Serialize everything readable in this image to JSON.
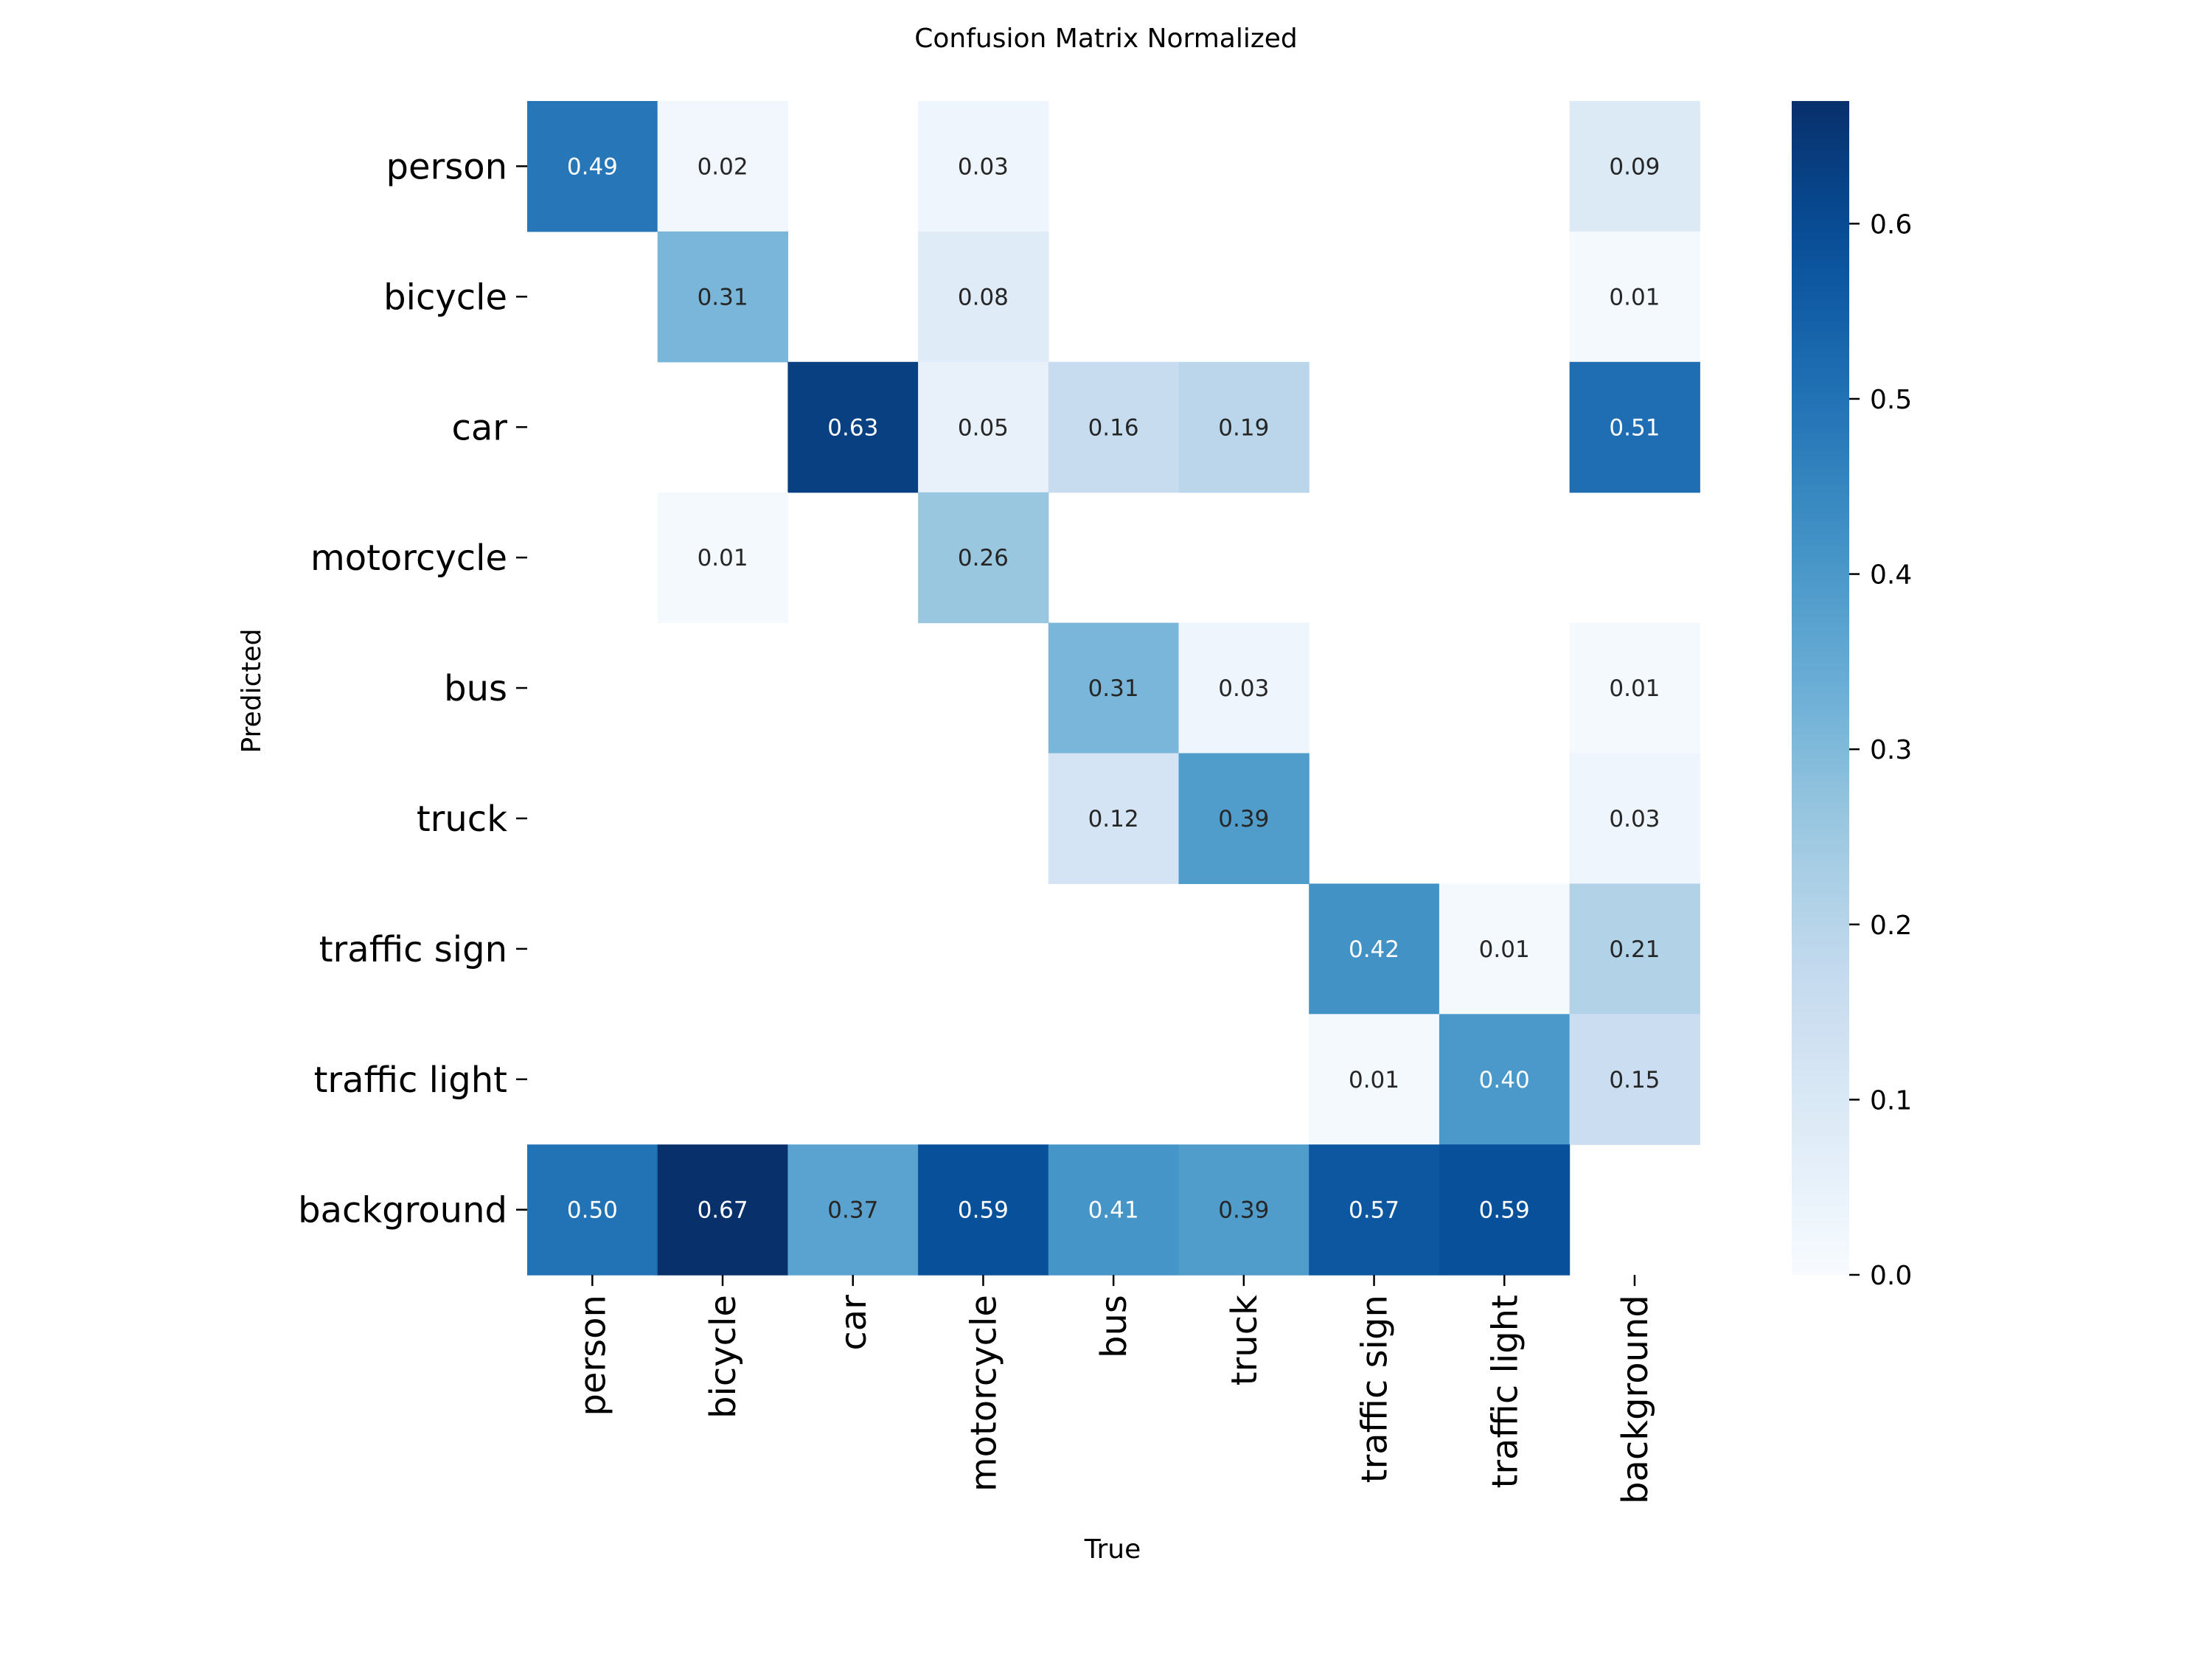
{
  "chart_data": {
    "type": "heatmap",
    "title": "Confusion Matrix Normalized",
    "xlabel": "True",
    "ylabel": "Predicted",
    "categories": [
      "person",
      "bicycle",
      "car",
      "motorcycle",
      "bus",
      "truck",
      "traffic sign",
      "traffic light",
      "background"
    ],
    "rows": [
      "person",
      "bicycle",
      "car",
      "motorcycle",
      "bus",
      "truck",
      "traffic sign",
      "traffic light",
      "background"
    ],
    "values": [
      [
        0.49,
        0.02,
        null,
        0.03,
        null,
        null,
        null,
        null,
        0.09
      ],
      [
        null,
        0.31,
        null,
        0.08,
        null,
        null,
        null,
        null,
        0.01
      ],
      [
        null,
        null,
        0.63,
        0.05,
        0.16,
        0.19,
        null,
        null,
        0.51
      ],
      [
        null,
        0.01,
        null,
        0.26,
        null,
        null,
        null,
        null,
        null
      ],
      [
        null,
        null,
        null,
        null,
        0.31,
        0.03,
        null,
        null,
        0.01
      ],
      [
        null,
        null,
        null,
        null,
        0.12,
        0.39,
        null,
        null,
        0.03
      ],
      [
        null,
        null,
        null,
        null,
        null,
        null,
        0.42,
        0.01,
        0.21
      ],
      [
        null,
        null,
        null,
        null,
        null,
        null,
        0.01,
        0.4,
        0.15
      ],
      [
        0.5,
        0.67,
        0.37,
        0.59,
        0.41,
        0.39,
        0.57,
        0.59,
        null
      ]
    ],
    "value_labels": [
      [
        "0.49",
        "0.02",
        "",
        "0.03",
        "",
        "",
        "",
        "",
        "0.09"
      ],
      [
        "",
        "0.31",
        "",
        "0.08",
        "",
        "",
        "",
        "",
        "0.01"
      ],
      [
        "",
        "",
        "0.63",
        "0.05",
        "0.16",
        "0.19",
        "",
        "",
        "0.51"
      ],
      [
        "",
        "0.01",
        "",
        "0.26",
        "",
        "",
        "",
        "",
        ""
      ],
      [
        "",
        "",
        "",
        "",
        "0.31",
        "0.03",
        "",
        "",
        "0.01"
      ],
      [
        "",
        "",
        "",
        "",
        "0.12",
        "0.39",
        "",
        "",
        "0.03"
      ],
      [
        "",
        "",
        "",
        "",
        "",
        "",
        "0.42",
        "0.01",
        "0.21"
      ],
      [
        "",
        "",
        "",
        "",
        "",
        "",
        "0.01",
        "0.40",
        "0.15"
      ],
      [
        "0.50",
        "0.67",
        "0.37",
        "0.59",
        "0.41",
        "0.39",
        "0.57",
        "0.59",
        ""
      ]
    ],
    "colormap": "Blues",
    "colorbar": {
      "range": [
        0.0,
        0.67
      ],
      "ticks": [
        0.0,
        0.1,
        0.2,
        0.3,
        0.4,
        0.5,
        0.6
      ],
      "tick_labels": [
        "0.0",
        "0.1",
        "0.2",
        "0.3",
        "0.4",
        "0.5",
        "0.6"
      ]
    },
    "grid": false,
    "legend": "colorbar-right"
  }
}
